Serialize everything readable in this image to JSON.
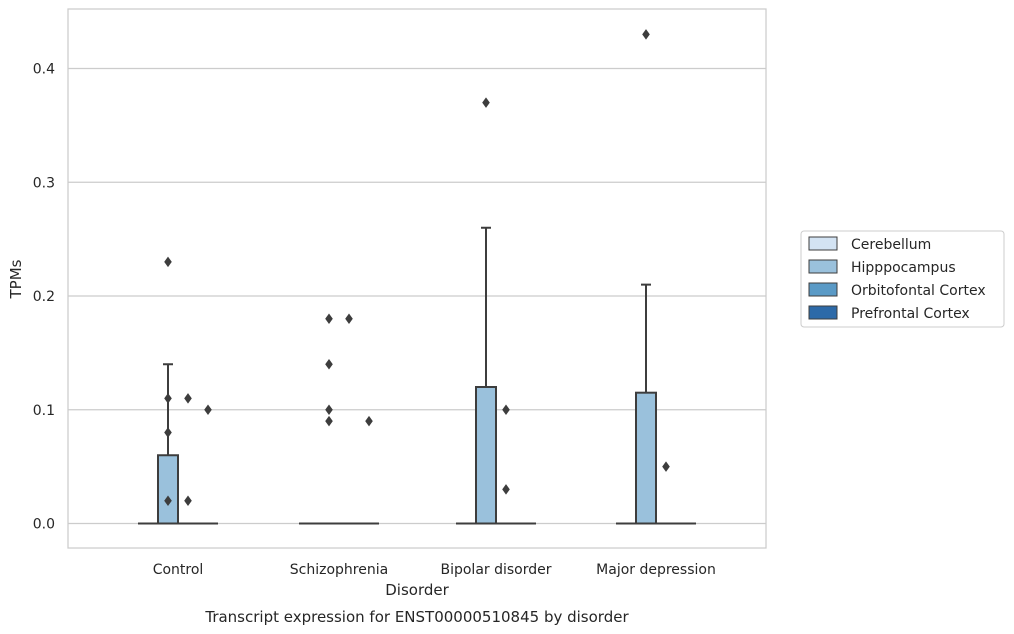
{
  "chart_data": {
    "type": "box",
    "caption": "Transcript expression for ENST00000510845 by disorder",
    "xlabel": "Disorder",
    "ylabel": "TPMs",
    "categories": [
      "Control",
      "Schizophrenia",
      "Bipolar disorder",
      "Major depression"
    ],
    "ylim": [
      -0.021,
      0.455
    ],
    "yticks": [
      0.0,
      0.1,
      0.2,
      0.3,
      0.4
    ],
    "ytick_labels": [
      "0.0",
      "0.1",
      "0.2",
      "0.3",
      "0.4"
    ],
    "grid": true,
    "legend_position": "right",
    "series": [
      {
        "name": "Cerebellum",
        "color": "#d3e3f3",
        "boxes": [
          {
            "category": "Control",
            "q1": 0,
            "median": 0,
            "q3": 0,
            "whisker_low": 0,
            "whisker_high": 0,
            "outliers": []
          },
          {
            "category": "Schizophrenia",
            "q1": 0,
            "median": 0,
            "q3": 0,
            "whisker_low": 0,
            "whisker_high": 0,
            "outliers": []
          },
          {
            "category": "Bipolar disorder",
            "q1": 0,
            "median": 0,
            "q3": 0,
            "whisker_low": 0,
            "whisker_high": 0,
            "outliers": []
          },
          {
            "category": "Major depression",
            "q1": 0,
            "median": 0,
            "q3": 0,
            "whisker_low": 0,
            "whisker_high": 0,
            "outliers": []
          }
        ]
      },
      {
        "name": "Hipppocampus",
        "color": "#9ac1dc",
        "boxes": [
          {
            "category": "Control",
            "q1": 0,
            "median": 0,
            "q3": 0.06,
            "whisker_low": 0,
            "whisker_high": 0.14,
            "outliers": [
              0.08,
              0.23,
              0.11,
              0.02
            ]
          },
          {
            "category": "Schizophrenia",
            "q1": 0,
            "median": 0,
            "q3": 0,
            "whisker_low": 0,
            "whisker_high": 0,
            "outliers": [
              0.09,
              0.1,
              0.14,
              0.18
            ]
          },
          {
            "category": "Bipolar disorder",
            "q1": 0,
            "median": 0,
            "q3": 0.12,
            "whisker_low": 0,
            "whisker_high": 0.26,
            "outliers": [
              0.37
            ]
          },
          {
            "category": "Major depression",
            "q1": 0,
            "median": 0,
            "q3": 0.115,
            "whisker_low": 0,
            "whisker_high": 0.21,
            "outliers": [
              0.43
            ]
          }
        ]
      },
      {
        "name": "Orbitofontal Cortex",
        "color": "#5a9ac6",
        "boxes": [
          {
            "category": "Control",
            "q1": 0,
            "median": 0,
            "q3": 0,
            "whisker_low": 0,
            "whisker_high": 0,
            "outliers": [
              0.11,
              0.02
            ]
          },
          {
            "category": "Schizophrenia",
            "q1": 0,
            "median": 0,
            "q3": 0,
            "whisker_low": 0,
            "whisker_high": 0,
            "outliers": [
              0.18
            ]
          },
          {
            "category": "Bipolar disorder",
            "q1": 0,
            "median": 0,
            "q3": 0,
            "whisker_low": 0,
            "whisker_high": 0,
            "outliers": [
              0.1,
              0.03
            ]
          },
          {
            "category": "Major depression",
            "q1": 0,
            "median": 0,
            "q3": 0,
            "whisker_low": 0,
            "whisker_high": 0,
            "outliers": [
              0.05
            ]
          }
        ]
      },
      {
        "name": "Prefrontal Cortex",
        "color": "#2d6aa8",
        "boxes": [
          {
            "category": "Control",
            "q1": 0,
            "median": 0,
            "q3": 0,
            "whisker_low": 0,
            "whisker_high": 0,
            "outliers": [
              0.1
            ]
          },
          {
            "category": "Schizophrenia",
            "q1": 0,
            "median": 0,
            "q3": 0,
            "whisker_low": 0,
            "whisker_high": 0,
            "outliers": [
              0.09
            ]
          },
          {
            "category": "Bipolar disorder",
            "q1": 0,
            "median": 0,
            "q3": 0,
            "whisker_low": 0,
            "whisker_high": 0,
            "outliers": []
          },
          {
            "category": "Major depression",
            "q1": 0,
            "median": 0,
            "q3": 0,
            "whisker_low": 0,
            "whisker_high": 0,
            "outliers": []
          }
        ]
      }
    ]
  }
}
